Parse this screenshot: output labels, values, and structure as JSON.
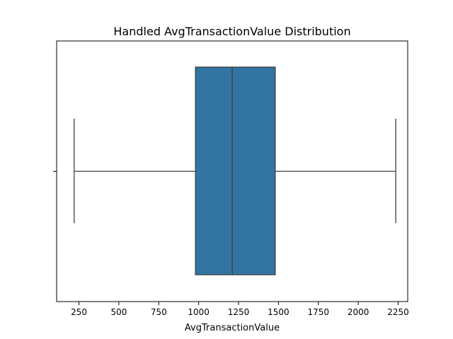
{
  "chart_data": {
    "type": "box",
    "title": "Handled AvgTransactionValue Distribution",
    "xlabel": "AvgTransactionValue",
    "ylabel": "",
    "xlim": [
      110,
      2310
    ],
    "xticks": [
      250,
      500,
      750,
      1000,
      1250,
      1500,
      1750,
      2000,
      2250
    ],
    "tick_labels": [
      "250",
      "500",
      "750",
      "1000",
      "1250",
      "1500",
      "1750",
      "2000",
      "2250"
    ],
    "grid": false,
    "box": {
      "whisker_low": 220,
      "q1": 980,
      "median": 1210,
      "q3": 1480,
      "whisker_high": 2235,
      "color": "#3274a1",
      "line_color": "#3f3f3f"
    }
  }
}
